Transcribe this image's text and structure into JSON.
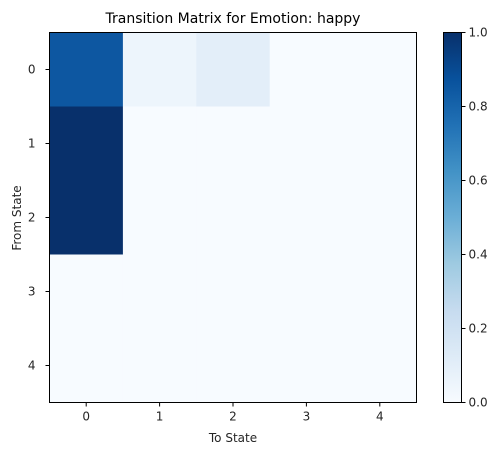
{
  "chart_data": {
    "type": "heatmap",
    "title": "Transition Matrix for Emotion: happy",
    "xlabel": "To State",
    "ylabel": "From State",
    "x_categories": [
      "0",
      "1",
      "2",
      "3",
      "4"
    ],
    "y_categories": [
      "0",
      "1",
      "2",
      "3",
      "4"
    ],
    "values": [
      [
        0.85,
        0.05,
        0.1,
        0.0,
        0.0
      ],
      [
        1.0,
        0.0,
        0.0,
        0.0,
        0.0
      ],
      [
        1.0,
        0.0,
        0.0,
        0.0,
        0.0
      ],
      [
        0.0,
        0.0,
        0.0,
        0.0,
        0.0
      ],
      [
        0.0,
        0.0,
        0.0,
        0.0,
        0.0
      ]
    ],
    "colormap": "Blues",
    "colorbar": {
      "min": 0.0,
      "max": 1.0,
      "ticks": [
        "0.0",
        "0.2",
        "0.4",
        "0.6",
        "0.8",
        "1.0"
      ]
    },
    "grid": false,
    "legend": "colorbar-right"
  },
  "colors": {
    "low": "#f7fbff",
    "high": "#08306b"
  }
}
